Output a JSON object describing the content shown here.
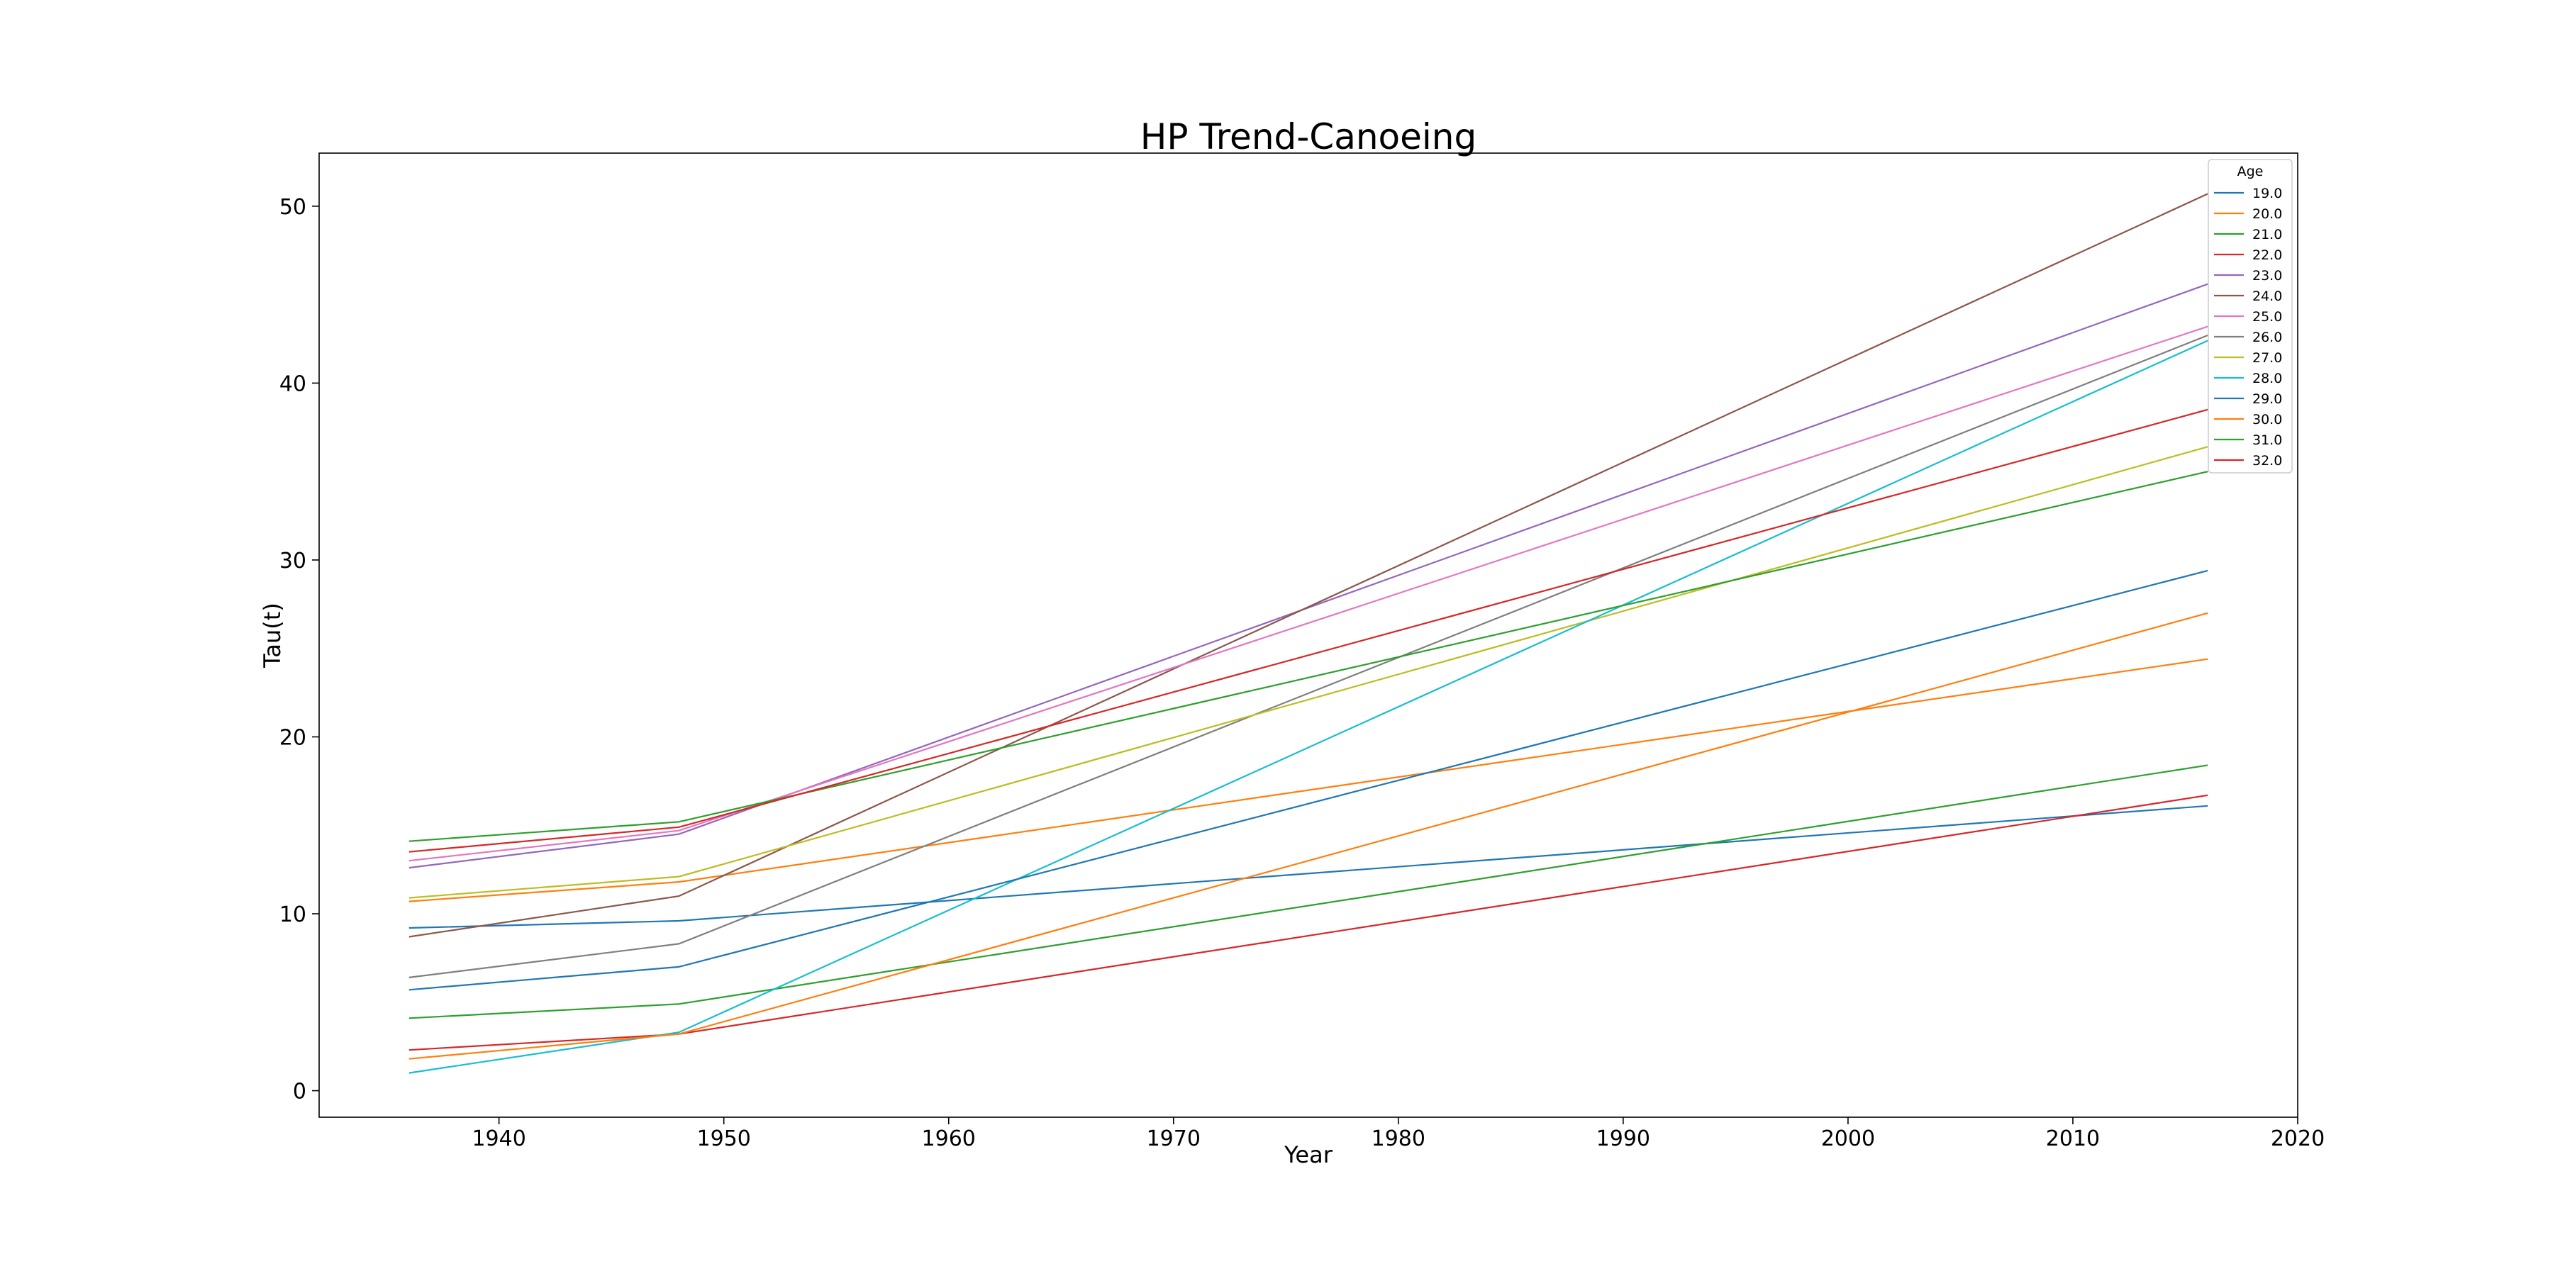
{
  "chart_data": {
    "type": "line",
    "title": "HP Trend-Canoeing",
    "xlabel": "Year",
    "ylabel": "Tau(t)",
    "xlim": [
      1932,
      2020
    ],
    "ylim": [
      -1.5,
      53
    ],
    "xticks": [
      1940,
      1950,
      1960,
      1970,
      1980,
      1990,
      2000,
      2010,
      2020
    ],
    "yticks": [
      0,
      10,
      20,
      30,
      40,
      50
    ],
    "grid": false,
    "legend": {
      "title": "Age",
      "placement": "top-right"
    },
    "x": [
      1936,
      1948,
      2016
    ],
    "series": [
      {
        "name": "19.0",
        "color": "#1f77b4",
        "values": [
          9.2,
          9.6,
          16.1
        ]
      },
      {
        "name": "20.0",
        "color": "#ff7f0e",
        "values": [
          10.7,
          11.8,
          24.4
        ]
      },
      {
        "name": "21.0",
        "color": "#2ca02c",
        "values": [
          4.1,
          4.9,
          18.4
        ]
      },
      {
        "name": "22.0",
        "color": "#d62728",
        "values": [
          2.3,
          3.2,
          16.7
        ]
      },
      {
        "name": "23.0",
        "color": "#9467bd",
        "values": [
          12.6,
          14.5,
          45.6
        ]
      },
      {
        "name": "24.0",
        "color": "#8c564b",
        "values": [
          8.7,
          11.0,
          50.7
        ]
      },
      {
        "name": "25.0",
        "color": "#e377c2",
        "values": [
          13.0,
          14.7,
          43.2
        ]
      },
      {
        "name": "26.0",
        "color": "#7f7f7f",
        "values": [
          6.4,
          8.3,
          42.7
        ]
      },
      {
        "name": "27.0",
        "color": "#bcbd22",
        "values": [
          10.9,
          12.1,
          36.4
        ]
      },
      {
        "name": "28.0",
        "color": "#17becf",
        "values": [
          1.0,
          3.3,
          42.4
        ]
      },
      {
        "name": "29.0",
        "color": "#1f77b4",
        "values": [
          5.7,
          7.0,
          29.4
        ]
      },
      {
        "name": "30.0",
        "color": "#ff7f0e",
        "values": [
          1.8,
          3.2,
          27.0
        ]
      },
      {
        "name": "31.0",
        "color": "#2ca02c",
        "values": [
          14.1,
          15.2,
          35.0
        ]
      },
      {
        "name": "32.0",
        "color": "#d62728",
        "values": [
          13.5,
          14.9,
          38.5
        ]
      }
    ]
  }
}
